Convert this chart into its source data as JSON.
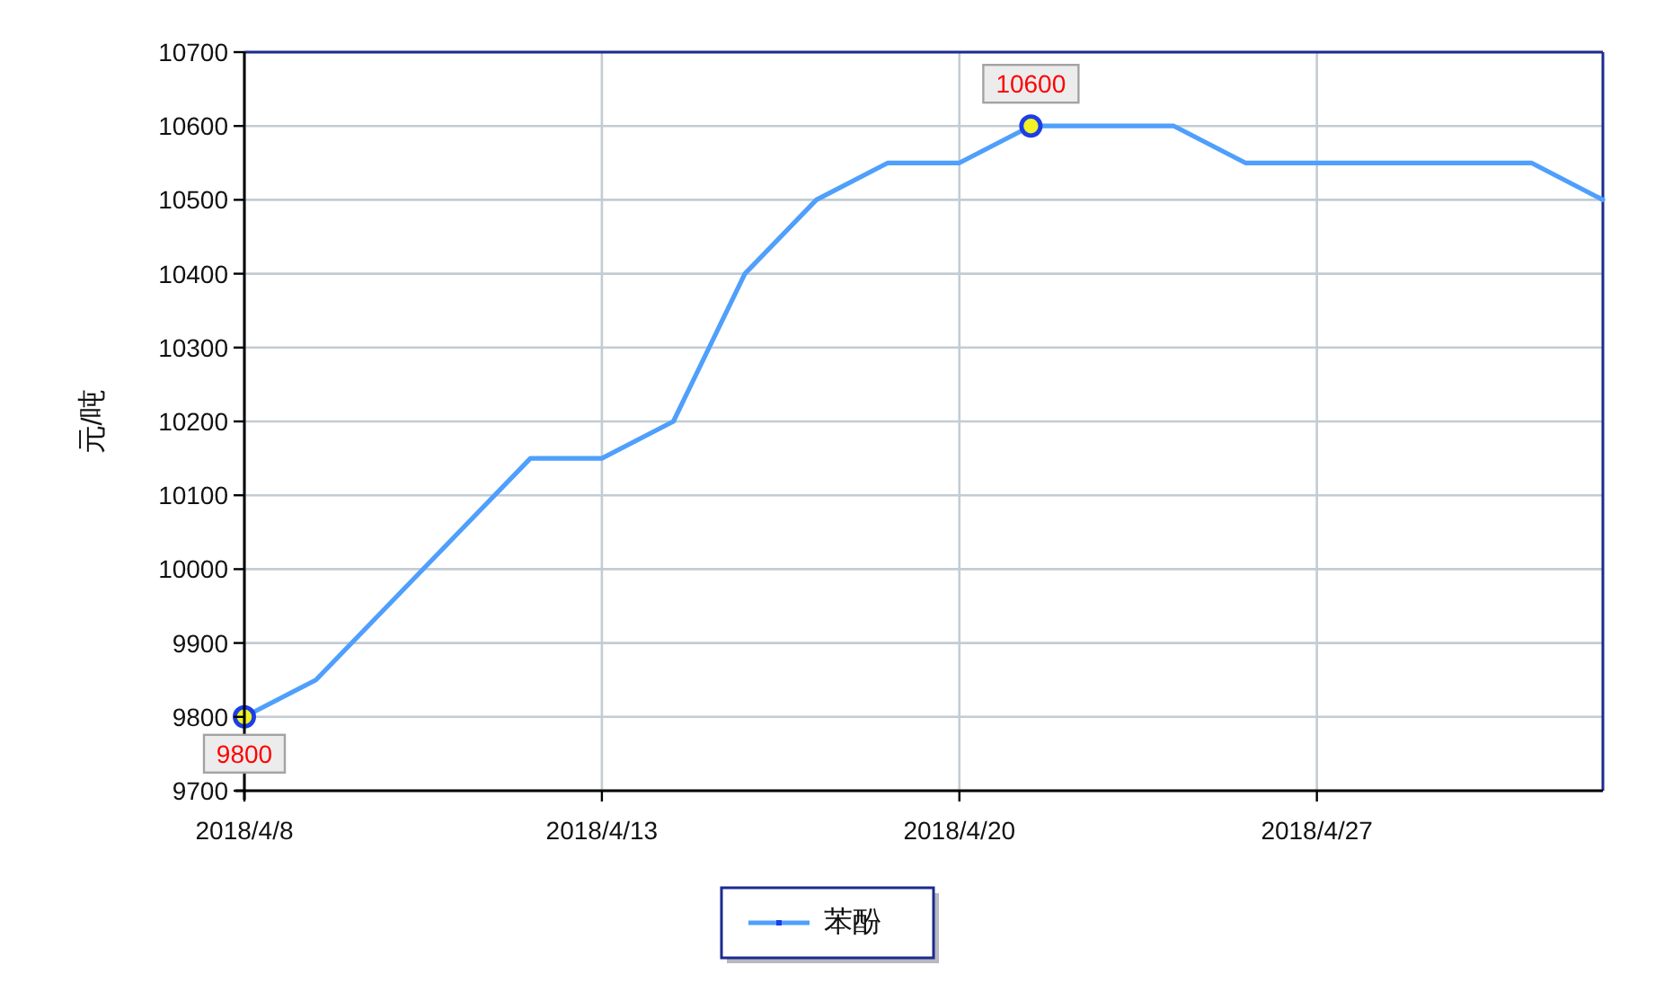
{
  "chart_data": {
    "type": "line",
    "ylabel": "元/吨",
    "categories": [
      "2018/4/8",
      null,
      null,
      null,
      null,
      "2018/4/13",
      null,
      null,
      null,
      null,
      "2018/4/20",
      null,
      null,
      null,
      null,
      "2018/4/27",
      null,
      null,
      null,
      null
    ],
    "series": [
      {
        "name": "苯酚",
        "color": "#4f9ffc",
        "values": [
          9800,
          9850,
          9950,
          10050,
          10150,
          10150,
          10200,
          10400,
          10500,
          10550,
          10550,
          10600,
          10600,
          10600,
          10550,
          10550,
          10550,
          10550,
          10550,
          10500
        ]
      },
      {
        "type": "scatter",
        "color": "#f2f224",
        "marker": "circle",
        "values": [
          9800,
          null,
          null,
          null,
          null,
          null,
          null,
          null,
          null,
          null,
          null,
          10600,
          null,
          null,
          null,
          null,
          null,
          null,
          null,
          null
        ],
        "value_labels": [
          "9800",
          null,
          null,
          null,
          null,
          null,
          null,
          null,
          null,
          null,
          null,
          "10600",
          null,
          null,
          null,
          null,
          null,
          null,
          null,
          null
        ]
      }
    ],
    "ylim": [
      9700,
      10700
    ],
    "yticks": [
      9700,
      9800,
      9900,
      10000,
      10100,
      10200,
      10300,
      10400,
      10500,
      10600,
      10700
    ],
    "grid": true,
    "legend": "bottom"
  }
}
